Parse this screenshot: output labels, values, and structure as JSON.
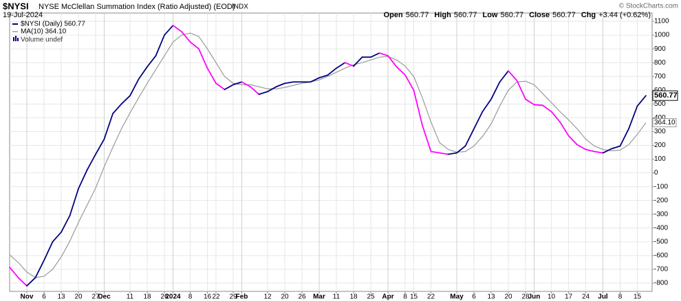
{
  "chart_data": {
    "type": "line",
    "symbol": "$NYSI",
    "title": "NYSE McClellan Summation Index (Ratio Adjusted) (EOD)",
    "exchange": "INDX",
    "date": "19-Jul-2024",
    "credit": "© StockCharts.com",
    "quote": [
      {
        "label": "Open",
        "value": "560.77"
      },
      {
        "label": "High",
        "value": "560.77"
      },
      {
        "label": "Low",
        "value": "560.77"
      },
      {
        "label": "Close",
        "value": "560.77"
      },
      {
        "label": "Chg",
        "value": "+3.44 (+0.62%)"
      }
    ],
    "volume_note": "Volume undef",
    "categories": [
      null,
      null,
      "Nov",
      null,
      "6",
      null,
      "13",
      null,
      "20",
      null,
      "27",
      "Dec",
      null,
      null,
      "11",
      null,
      "18",
      null,
      "26",
      "2024",
      null,
      "8",
      null,
      "16",
      "22",
      null,
      "29",
      "Feb",
      null,
      null,
      "12",
      null,
      "20",
      null,
      "26",
      null,
      "Mar",
      null,
      "11",
      null,
      "18",
      null,
      "25",
      null,
      "Apr",
      null,
      "8",
      "15",
      null,
      "22",
      null,
      null,
      "May",
      null,
      "6",
      null,
      "13",
      null,
      "20",
      null,
      "28",
      "Jun",
      null,
      "10",
      null,
      "17",
      null,
      "24",
      null,
      "Jul",
      null,
      "8",
      null,
      "15",
      null
    ],
    "series": [
      {
        "name": "$NYSI (Daily) 560.77",
        "color": "#000080",
        "down_color": "#ff00ff",
        "values": [
          -685,
          -760,
          -820,
          -760,
          -635,
          -500,
          -430,
          -310,
          -115,
          20,
          135,
          245,
          430,
          500,
          560,
          680,
          770,
          850,
          1000,
          1070,
          1025,
          950,
          900,
          760,
          650,
          605,
          640,
          660,
          625,
          570,
          590,
          625,
          650,
          660,
          660,
          660,
          690,
          710,
          760,
          800,
          775,
          840,
          840,
          870,
          850,
          770,
          710,
          600,
          345,
          155,
          145,
          135,
          145,
          195,
          320,
          445,
          535,
          660,
          740,
          670,
          535,
          495,
          490,
          445,
          370,
          270,
          205,
          170,
          155,
          145,
          175,
          195,
          320,
          485,
          560.77
        ]
      },
      {
        "name": "MA(10) 364.10",
        "color": "#999999",
        "values": [
          -595,
          -650,
          -720,
          -760,
          -750,
          -700,
          -610,
          -495,
          -360,
          -235,
          -110,
          45,
          185,
          320,
          435,
          545,
          650,
          750,
          850,
          950,
          1000,
          1015,
          990,
          900,
          800,
          700,
          650,
          640,
          640,
          625,
          610,
          610,
          620,
          635,
          650,
          660,
          675,
          700,
          730,
          760,
          785,
          800,
          820,
          840,
          845,
          820,
          775,
          700,
          545,
          370,
          220,
          170,
          150,
          155,
          195,
          265,
          355,
          485,
          600,
          660,
          665,
          640,
          575,
          510,
          445,
          385,
          320,
          245,
          195,
          170,
          160,
          165,
          205,
          280,
          364.1
        ],
        "value_labels": [
          null,
          null,
          null,
          null,
          null,
          null,
          null,
          null,
          null,
          null,
          null,
          null,
          null,
          null,
          null,
          null,
          null,
          null,
          null,
          null,
          null,
          null,
          null,
          null,
          null,
          null,
          null,
          null,
          null,
          null,
          null,
          null,
          null,
          null,
          null,
          null,
          null,
          null,
          null,
          null,
          null,
          null,
          null,
          null,
          null,
          null,
          null,
          null,
          null,
          null,
          null,
          null,
          null,
          null,
          null,
          null,
          null,
          null,
          null,
          null,
          null,
          null,
          null,
          null,
          null,
          null,
          null,
          null,
          null,
          null,
          null,
          null,
          null,
          null,
          "364.10"
        ]
      }
    ],
    "ylim": [
      -860,
      1160
    ],
    "yticks": [
      1100,
      1000,
      900,
      800,
      700,
      600,
      500,
      400,
      300,
      200,
      100,
      0,
      -100,
      -200,
      -300,
      -400,
      -500,
      -600,
      -700,
      -800
    ],
    "grid": true
  }
}
